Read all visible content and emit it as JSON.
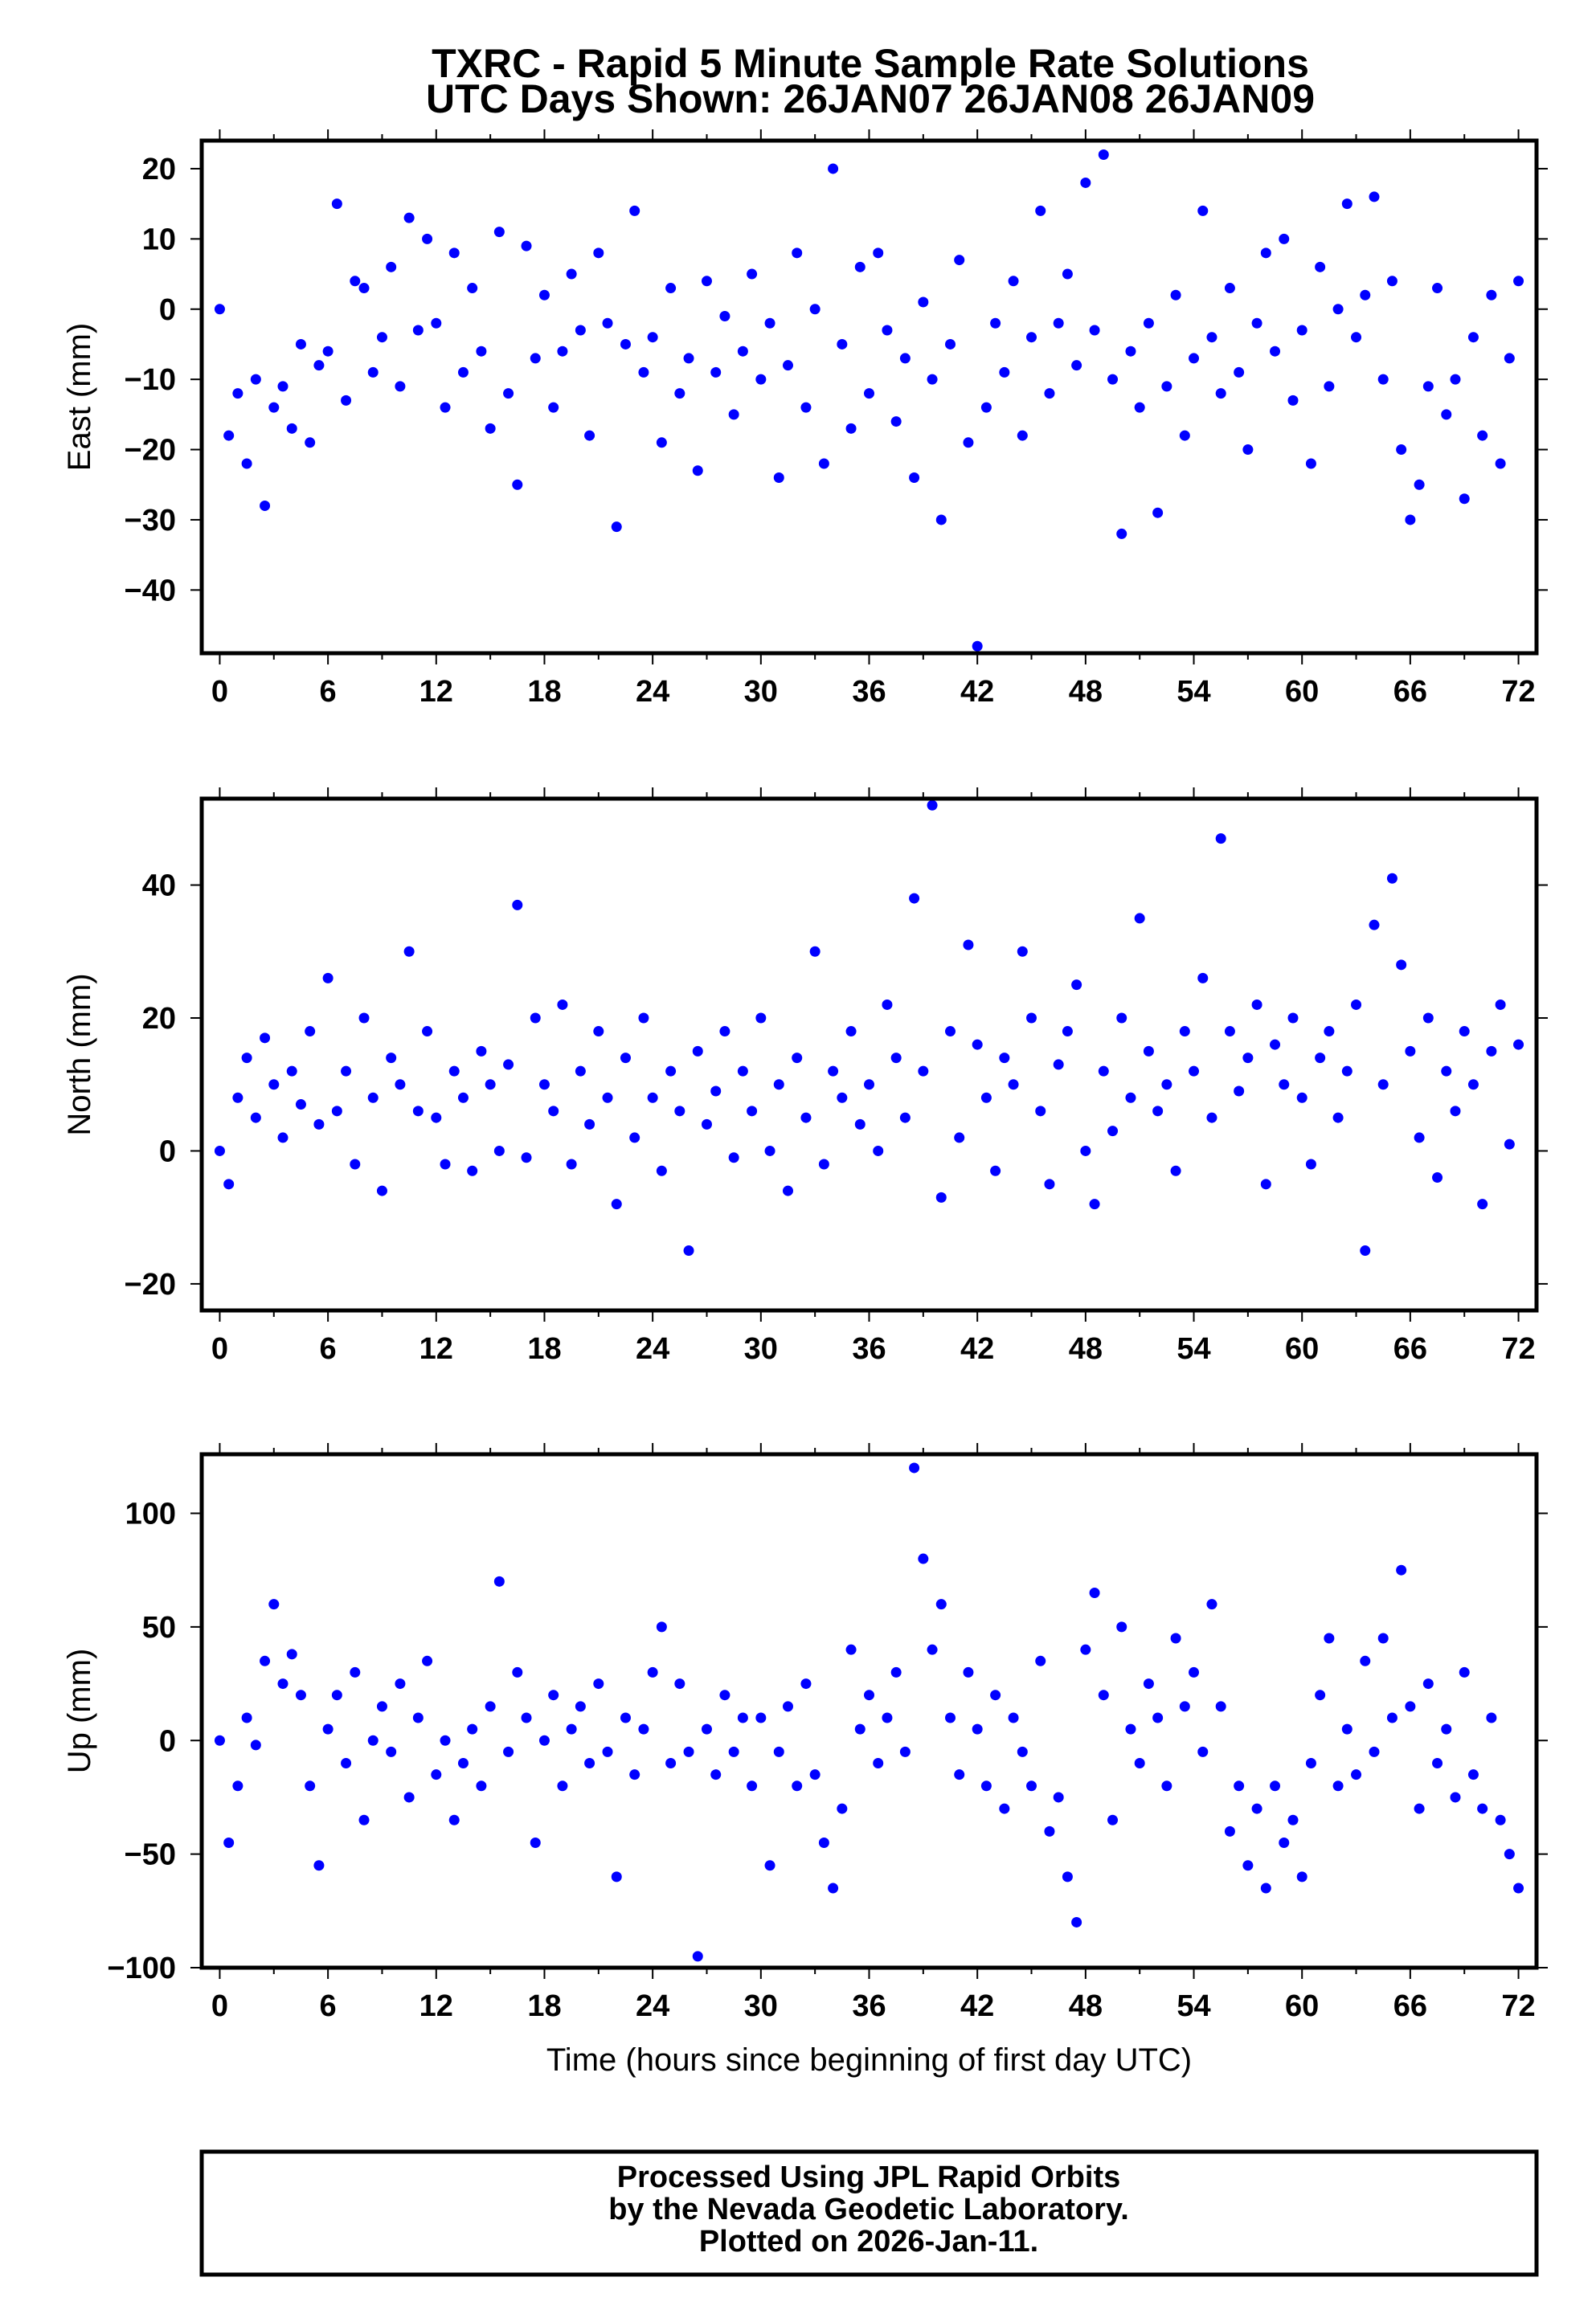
{
  "title": "TXRC - Rapid 5 Minute Sample Rate Solutions",
  "subtitle": "UTC Days Shown:  26JAN07 26JAN08 26JAN09",
  "footer": [
    "Processed Using JPL Rapid Orbits",
    "by the Nevada Geodetic Laboratory.",
    "Plotted on 2026-Jan-11."
  ],
  "point_color": "#0000ff",
  "chart_data": [
    {
      "type": "scatter",
      "name": "east",
      "ylabel": "East (mm)",
      "xlabel": "",
      "xlim": [
        -1,
        73
      ],
      "ylim": [
        -49,
        24
      ],
      "xticks": [
        0,
        6,
        12,
        18,
        24,
        30,
        36,
        42,
        48,
        54,
        60,
        66,
        72
      ],
      "yticks": [
        20,
        10,
        0,
        -10,
        -20,
        -30,
        -40
      ],
      "x_start": 0,
      "x_step": 0.5,
      "values": [
        0,
        -18,
        -12,
        -22,
        -10,
        -28,
        -14,
        -11,
        -17,
        -5,
        -19,
        -8,
        -6,
        15,
        -13,
        4,
        3,
        -9,
        -4,
        6,
        -11,
        13,
        -3,
        10,
        -2,
        -14,
        8,
        -9,
        3,
        -6,
        -17,
        11,
        -12,
        -25,
        9,
        -7,
        2,
        -14,
        -6,
        5,
        -3,
        -18,
        8,
        -2,
        -31,
        -5,
        14,
        -9,
        -4,
        -19,
        3,
        -12,
        -7,
        -23,
        4,
        -9,
        -1,
        -15,
        -6,
        5,
        -10,
        -2,
        -24,
        -8,
        8,
        -14,
        0,
        -22,
        20,
        -5,
        -17,
        6,
        -12,
        8,
        -3,
        -16,
        -7,
        -24,
        1,
        -10,
        -30,
        -5,
        7,
        -19,
        -48,
        -14,
        -2,
        -9,
        4,
        -18,
        -4,
        14,
        -12,
        -2,
        5,
        -8,
        18,
        -3,
        22,
        -10,
        -32,
        -6,
        -14,
        -2,
        -29,
        -11,
        2,
        -18,
        -7,
        14,
        -4,
        -12,
        3,
        -9,
        -20,
        -2,
        8,
        -6,
        10,
        -13,
        -3,
        -22,
        6,
        -11,
        0,
        15,
        -4,
        2,
        16,
        -10,
        4,
        -20,
        -30,
        -25,
        -11,
        3,
        -15,
        -10,
        -27,
        -4,
        -18,
        2,
        -22,
        -7,
        4
      ]
    },
    {
      "type": "scatter",
      "name": "north",
      "ylabel": "North (mm)",
      "xlabel": "",
      "xlim": [
        -1,
        73
      ],
      "ylim": [
        -24,
        53
      ],
      "xticks": [
        0,
        6,
        12,
        18,
        24,
        30,
        36,
        42,
        48,
        54,
        60,
        66,
        72
      ],
      "yticks": [
        40,
        20,
        0,
        -20
      ],
      "x_start": 0,
      "x_step": 0.5,
      "values": [
        0,
        -5,
        8,
        14,
        5,
        17,
        10,
        2,
        12,
        7,
        18,
        4,
        26,
        6,
        12,
        -2,
        20,
        8,
        -6,
        14,
        10,
        30,
        6,
        18,
        5,
        -2,
        12,
        8,
        -3,
        15,
        10,
        0,
        13,
        37,
        -1,
        20,
        10,
        6,
        22,
        -2,
        12,
        4,
        18,
        8,
        -8,
        14,
        2,
        20,
        8,
        -3,
        12,
        6,
        -15,
        15,
        4,
        9,
        18,
        -1,
        12,
        6,
        20,
        0,
        10,
        -6,
        14,
        5,
        30,
        -2,
        12,
        8,
        18,
        4,
        10,
        0,
        22,
        14,
        5,
        38,
        12,
        52,
        -7,
        18,
        2,
        31,
        16,
        8,
        -3,
        14,
        10,
        30,
        20,
        6,
        -5,
        13,
        18,
        25,
        0,
        -8,
        12,
        3,
        20,
        8,
        35,
        15,
        6,
        10,
        -3,
        18,
        12,
        26,
        5,
        47,
        18,
        9,
        14,
        22,
        -5,
        16,
        10,
        20,
        8,
        -2,
        14,
        18,
        5,
        12,
        22,
        -15,
        34,
        10,
        41,
        28,
        15,
        2,
        20,
        -4,
        12,
        6,
        18,
        10,
        -8,
        15,
        22,
        1,
        16
      ]
    },
    {
      "type": "scatter",
      "name": "up",
      "ylabel": "Up (mm)",
      "xlabel": "Time (hours since beginning of first day UTC)",
      "xlim": [
        -1,
        73
      ],
      "ylim": [
        -100,
        126
      ],
      "xticks": [
        0,
        6,
        12,
        18,
        24,
        30,
        36,
        42,
        48,
        54,
        60,
        66,
        72
      ],
      "yticks": [
        100,
        50,
        0,
        -50,
        -100
      ],
      "x_start": 0,
      "x_step": 0.5,
      "values": [
        0,
        -45,
        -20,
        10,
        -2,
        35,
        60,
        25,
        38,
        20,
        -20,
        -55,
        5,
        20,
        -10,
        30,
        -35,
        0,
        15,
        -5,
        25,
        -25,
        10,
        35,
        -15,
        0,
        -35,
        -10,
        5,
        -20,
        15,
        70,
        -5,
        30,
        10,
        -45,
        0,
        20,
        -20,
        5,
        15,
        -10,
        25,
        -5,
        -60,
        10,
        -15,
        5,
        30,
        50,
        -10,
        25,
        -5,
        -95,
        5,
        -15,
        20,
        -5,
        10,
        -20,
        10,
        -55,
        -5,
        15,
        -20,
        25,
        -15,
        -45,
        -65,
        -30,
        40,
        5,
        20,
        -10,
        10,
        30,
        -5,
        120,
        80,
        40,
        60,
        10,
        -15,
        30,
        5,
        -20,
        20,
        -30,
        10,
        -5,
        -20,
        35,
        -40,
        -25,
        -60,
        -80,
        40,
        65,
        20,
        -35,
        50,
        5,
        -10,
        25,
        10,
        -20,
        45,
        15,
        30,
        -5,
        60,
        15,
        -40,
        -20,
        -55,
        -30,
        -65,
        -20,
        -45,
        -35,
        -60,
        -10,
        20,
        45,
        -20,
        5,
        -15,
        35,
        -5,
        45,
        10,
        75,
        15,
        -30,
        25,
        -10,
        5,
        -25,
        30,
        -15,
        -30,
        10,
        -35,
        -50,
        -65
      ]
    }
  ]
}
